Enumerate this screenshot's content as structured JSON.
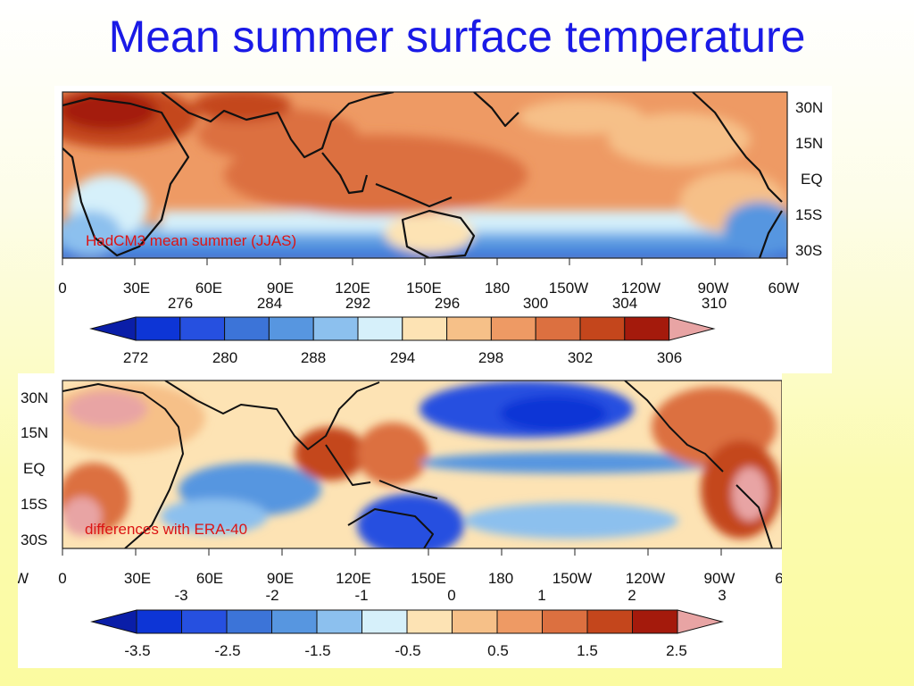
{
  "slide": {
    "title": "Mean summer surface temperature"
  },
  "panels": [
    {
      "id": "hadcm3",
      "caption": "HadCM3 mean summer (JJAS)",
      "lon_labels": [
        "0",
        "30E",
        "60E",
        "90E",
        "120E",
        "150E",
        "180",
        "150W",
        "120W",
        "90W",
        "60W"
      ],
      "lat_labels": [
        "30N",
        "15N",
        "EQ",
        "15S",
        "30S"
      ],
      "colorbar": {
        "upper_ticks": [
          "276",
          "284",
          "292",
          "296",
          "300",
          "304",
          "310"
        ],
        "lower_ticks": [
          "272",
          "280",
          "288",
          "294",
          "298",
          "302",
          "306"
        ],
        "colors": [
          "#0a1ea8",
          "#0d35d6",
          "#2650e0",
          "#3c74d8",
          "#5796e0",
          "#8cc0ee",
          "#d6f0fa",
          "#fde3b4",
          "#f6c088",
          "#ee9a64",
          "#dc7040",
          "#c4461c",
          "#a41a0c",
          "#e8a4a4"
        ]
      }
    },
    {
      "id": "diff",
      "caption": "differences with ERA-40",
      "lon_labels": [
        "W",
        "0",
        "30E",
        "60E",
        "90E",
        "120E",
        "150E",
        "180",
        "150W",
        "120W",
        "90W",
        "6"
      ],
      "lat_labels": [
        "30N",
        "15N",
        "EQ",
        "15S",
        "30S"
      ],
      "colorbar": {
        "upper_ticks": [
          "-3",
          "-2",
          "-1",
          "0",
          "1",
          "2",
          "3"
        ],
        "lower_ticks": [
          "-3.5",
          "-2.5",
          "-1.5",
          "-0.5",
          "0.5",
          "1.5",
          "2.5"
        ],
        "colors": [
          "#0a1ea8",
          "#0d35d6",
          "#2650e0",
          "#3c74d8",
          "#5796e0",
          "#8cc0ee",
          "#d6f0fa",
          "#fde3b4",
          "#f6c088",
          "#ee9a64",
          "#dc7040",
          "#c4461c",
          "#a41a0c",
          "#e8a4a4"
        ]
      }
    }
  ]
}
